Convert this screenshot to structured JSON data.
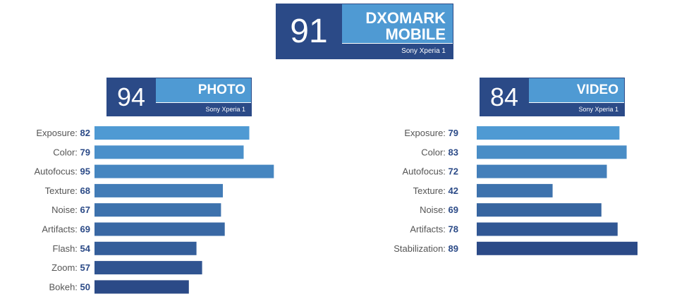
{
  "overall": {
    "score": "91",
    "title_line1": "DXOMARK",
    "title_line2": "MOBILE",
    "model": "Sony Xperia 1"
  },
  "photo": {
    "score": "94",
    "title": "PHOTO",
    "model": "Sony Xperia 1"
  },
  "video": {
    "score": "84",
    "title": "VIDEO",
    "model": "Sony Xperia 1"
  },
  "colors": {
    "dark": "#2b4a87",
    "light": "#4f9ad3"
  },
  "chart_data": [
    {
      "type": "bar",
      "title": "PHOTO",
      "orientation": "horizontal",
      "categories": [
        "Exposure",
        "Color",
        "Autofocus",
        "Texture",
        "Noise",
        "Artifacts",
        "Flash",
        "Zoom",
        "Bokeh"
      ],
      "values": [
        82,
        79,
        95,
        68,
        67,
        69,
        54,
        57,
        50
      ],
      "xlim": [
        0,
        100
      ],
      "grid": false
    },
    {
      "type": "bar",
      "title": "VIDEO",
      "orientation": "horizontal",
      "categories": [
        "Exposure",
        "Color",
        "Autofocus",
        "Texture",
        "Noise",
        "Artifacts",
        "Stabilization"
      ],
      "values": [
        79,
        83,
        72,
        42,
        69,
        78,
        89
      ],
      "xlim": [
        0,
        100
      ],
      "grid": false
    }
  ]
}
